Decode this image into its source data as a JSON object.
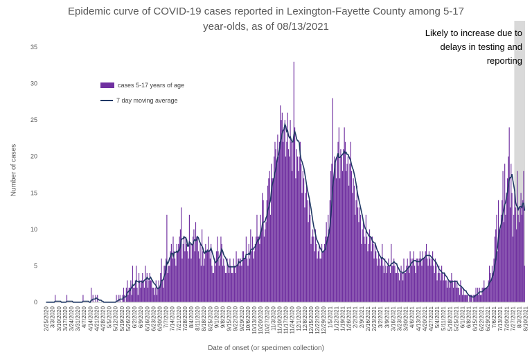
{
  "chart_data": {
    "type": "bar",
    "title": "Epidemic curve of COVID-19 cases reported in Lexington-Fayette County among 5-17",
    "title_line2": "year-olds, as of 08/13/2021",
    "xlabel": "Date of onset (or specimen collection)",
    "ylabel": "Number of cases",
    "ylim": [
      0,
      35
    ],
    "yticks": [
      0,
      5,
      10,
      15,
      20,
      25,
      30,
      35
    ],
    "grid": false,
    "legend_position": "top-left",
    "annotation": [
      "Likely to increase due to",
      "delays in testing and",
      "reporting"
    ],
    "shaded_period": {
      "start": "8/2/2021",
      "end": "8/13/2021"
    },
    "xtick_labels": [
      "2/25/2020",
      "3/3/2020",
      "3/10/2020",
      "3/17/2020",
      "3/24/2020",
      "3/31/2020",
      "4/7/2020",
      "4/14/2020",
      "4/21/2020",
      "4/28/2020",
      "5/5/2020",
      "5/12/2020",
      "5/19/2020",
      "5/26/2020",
      "6/2/2020",
      "6/9/2020",
      "6/16/2020",
      "6/23/2020",
      "6/30/2020",
      "7/7/2020",
      "7/14/2020",
      "7/21/2020",
      "7/28/2020",
      "8/4/2020",
      "8/11/2020",
      "8/18/2020",
      "8/25/2020",
      "9/1/2020",
      "9/8/2020",
      "9/15/2020",
      "9/22/2020",
      "9/29/2020",
      "10/6/2020",
      "10/13/2020",
      "10/20/2020",
      "10/27/2020",
      "11/3/2020",
      "11/10/2020",
      "11/17/2020",
      "11/24/2020",
      "12/1/2020",
      "12/8/2020",
      "12/15/2020",
      "12/22/2020",
      "12/29/2020",
      "1/5/2021",
      "1/12/2021",
      "1/19/2021",
      "1/26/2021",
      "2/2/2021",
      "2/9/2021",
      "2/16/2021",
      "2/23/2021",
      "3/2/2021",
      "3/9/2021",
      "3/16/2021",
      "3/23/2021",
      "3/30/2021",
      "4/6/2021",
      "4/13/2021",
      "4/20/2021",
      "4/27/2021",
      "5/4/2021",
      "5/11/2021",
      "5/18/2021",
      "5/25/2021",
      "6/1/2021",
      "6/8/2021",
      "6/15/2021",
      "6/22/2021",
      "6/29/2021",
      "7/6/2021",
      "7/13/2021",
      "7/20/2021",
      "7/27/2021",
      "8/3/2021",
      "8/10/2021"
    ],
    "series": [
      {
        "name": "cases 5-17 years of age",
        "type": "bar",
        "color": "#7030a0",
        "weekly_daily_values": [
          [
            0,
            0,
            0,
            0,
            0,
            0,
            0
          ],
          [
            0,
            0,
            0,
            1,
            0,
            0,
            0
          ],
          [
            0,
            0,
            0,
            0,
            0,
            0,
            0
          ],
          [
            0,
            0,
            1,
            0,
            0,
            0,
            0
          ],
          [
            0,
            0,
            0,
            0,
            0,
            0,
            0
          ],
          [
            0,
            0,
            0,
            0,
            0,
            0,
            1
          ],
          [
            0,
            0,
            0,
            0,
            0,
            0,
            0
          ],
          [
            0,
            2,
            0,
            1,
            0,
            0,
            1
          ],
          [
            0,
            1,
            0,
            0,
            0,
            0,
            0
          ],
          [
            0,
            0,
            0,
            0,
            0,
            0,
            0
          ],
          [
            0,
            0,
            0,
            0,
            0,
            0,
            0
          ],
          [
            0,
            1,
            0,
            1,
            0,
            1,
            0
          ],
          [
            0,
            1,
            2,
            1,
            0,
            2,
            3
          ],
          [
            1,
            2,
            2,
            3,
            1,
            5,
            2
          ],
          [
            2,
            3,
            5,
            2,
            1,
            4,
            3
          ],
          [
            2,
            3,
            4,
            3,
            2,
            5,
            3
          ],
          [
            4,
            2,
            3,
            4,
            3,
            3,
            2
          ],
          [
            2,
            1,
            2,
            3,
            1,
            2,
            3
          ],
          [
            2,
            4,
            6,
            3,
            2,
            5,
            5
          ],
          [
            6,
            12,
            4,
            5,
            5,
            7,
            8
          ],
          [
            6,
            9,
            7,
            6,
            5,
            8,
            7
          ],
          [
            8,
            9,
            10,
            13,
            6,
            8,
            9
          ],
          [
            7,
            9,
            8,
            7,
            6,
            12,
            8
          ],
          [
            6,
            8,
            9,
            10,
            7,
            11,
            9
          ],
          [
            9,
            7,
            6,
            8,
            5,
            10,
            7
          ],
          [
            5,
            6,
            8,
            7,
            7,
            9,
            7
          ],
          [
            6,
            8,
            5,
            4,
            4,
            6,
            5
          ],
          [
            7,
            9,
            7,
            5,
            6,
            9,
            8
          ],
          [
            5,
            6,
            5,
            4,
            4,
            6,
            5
          ],
          [
            4,
            6,
            5,
            4,
            4,
            6,
            5
          ],
          [
            4,
            7,
            5,
            6,
            6,
            5,
            6
          ],
          [
            5,
            7,
            7,
            6,
            6,
            9,
            6
          ],
          [
            5,
            8,
            6,
            10,
            7,
            9,
            6
          ],
          [
            7,
            8,
            9,
            12,
            9,
            9,
            8
          ],
          [
            12,
            10,
            15,
            14,
            9,
            10,
            11
          ],
          [
            14,
            16,
            17,
            18,
            12,
            19,
            17
          ],
          [
            17,
            20,
            22,
            21,
            19,
            23,
            20
          ],
          [
            22,
            27,
            25,
            26,
            22,
            24,
            25
          ],
          [
            20,
            22,
            26,
            21,
            20,
            25,
            22
          ],
          [
            18,
            22,
            33,
            24,
            17,
            21,
            20
          ],
          [
            18,
            20,
            22,
            19,
            15,
            18,
            17
          ],
          [
            13,
            15,
            16,
            14,
            11,
            14,
            12
          ],
          [
            8,
            9,
            10,
            9,
            7,
            10,
            8
          ],
          [
            6,
            7,
            8,
            6,
            6,
            8,
            7
          ],
          [
            7,
            8,
            9,
            11,
            9,
            12,
            10
          ],
          [
            14,
            18,
            19,
            28,
            17,
            20,
            19
          ],
          [
            17,
            20,
            22,
            24,
            17,
            21,
            20
          ],
          [
            18,
            21,
            24,
            22,
            18,
            19,
            20
          ],
          [
            16,
            19,
            22,
            18,
            15,
            17,
            16
          ],
          [
            12,
            14,
            16,
            13,
            11,
            13,
            12
          ],
          [
            8,
            10,
            11,
            9,
            8,
            12,
            9
          ],
          [
            7,
            8,
            10,
            9,
            7,
            9,
            8
          ],
          [
            6,
            8,
            7,
            6,
            5,
            7,
            6
          ],
          [
            5,
            6,
            8,
            5,
            4,
            6,
            5
          ],
          [
            4,
            5,
            6,
            5,
            4,
            8,
            5
          ],
          [
            5,
            6,
            5,
            4,
            4,
            5,
            4
          ],
          [
            3,
            4,
            5,
            4,
            3,
            6,
            4
          ],
          [
            4,
            5,
            6,
            5,
            4,
            7,
            6
          ],
          [
            5,
            6,
            7,
            5,
            4,
            6,
            6
          ],
          [
            5,
            6,
            7,
            6,
            5,
            7,
            6
          ],
          [
            6,
            7,
            8,
            6,
            5,
            7,
            6
          ],
          [
            5,
            6,
            7,
            5,
            4,
            6,
            5
          ],
          [
            3,
            4,
            5,
            4,
            3,
            5,
            4
          ],
          [
            3,
            4,
            3,
            3,
            2,
            3,
            3
          ],
          [
            2,
            3,
            4,
            3,
            2,
            3,
            3
          ],
          [
            2,
            3,
            2,
            2,
            1,
            3,
            2
          ],
          [
            1,
            2,
            1,
            1,
            1,
            1,
            1
          ],
          [
            0,
            1,
            1,
            1,
            0,
            1,
            1
          ],
          [
            1,
            2,
            1,
            2,
            1,
            2,
            1
          ],
          [
            1,
            2,
            2,
            3,
            2,
            2,
            2
          ],
          [
            2,
            3,
            5,
            4,
            3,
            5,
            4
          ],
          [
            6,
            9,
            10,
            12,
            7,
            14,
            10
          ],
          [
            10,
            12,
            14,
            18,
            11,
            19,
            12
          ],
          [
            15,
            17,
            20,
            24,
            13,
            19,
            15
          ],
          [
            9,
            12,
            15,
            13,
            10,
            18,
            12
          ],
          [
            11,
            13,
            15,
            12,
            14,
            18,
            5
          ]
        ]
      },
      {
        "name": "7 day moving average",
        "type": "line",
        "color": "#1f3864"
      }
    ]
  }
}
